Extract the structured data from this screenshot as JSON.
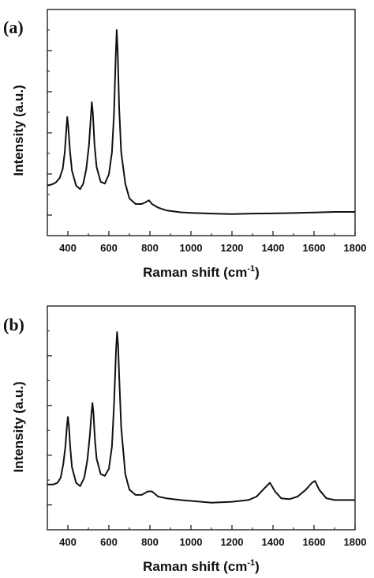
{
  "chart_data": [
    {
      "type": "line",
      "panel_label": "(a)",
      "xlabel": "Raman shift (cm",
      "xlabel_sup": "-1",
      "xlabel_close": ")",
      "ylabel": "Intensity (a.u.)",
      "xlim": [
        300,
        1800
      ],
      "ylim": [
        0,
        100
      ],
      "x_ticks": [
        400,
        600,
        800,
        1000,
        1200,
        1400,
        1600,
        1800
      ],
      "y_ticks_labeled": false,
      "grid": false,
      "series": [
        {
          "x": [
            300,
            320,
            340,
            360,
            375,
            385,
            392,
            397,
            402,
            410,
            420,
            440,
            460,
            475,
            490,
            503,
            512,
            517,
            522,
            530,
            540,
            560,
            580,
            600,
            615,
            625,
            633,
            638,
            643,
            650,
            660,
            680,
            700,
            730,
            760,
            780,
            795,
            810,
            840,
            880,
            950,
            1000,
            1100,
            1200,
            1300,
            1400,
            1500,
            1600,
            1700,
            1800
          ],
          "y": [
            16,
            16.5,
            17.5,
            20,
            25,
            34,
            45,
            53,
            48,
            35,
            24,
            16,
            14,
            17,
            25,
            38,
            53,
            61,
            55,
            38,
            26,
            18,
            17,
            22,
            34,
            55,
            85,
            100,
            88,
            58,
            34,
            17,
            9,
            6,
            6,
            7,
            8,
            6,
            4,
            2.5,
            1.5,
            1.2,
            0.8,
            0.5,
            0.8,
            0.9,
            1.1,
            1.4,
            1.7,
            1.7
          ]
        }
      ]
    },
    {
      "type": "line",
      "panel_label": "(b)",
      "xlabel": "Raman shift (cm",
      "xlabel_sup": "-1",
      "xlabel_close": ")",
      "ylabel": "Intensity (a.u.)",
      "xlim": [
        300,
        1800
      ],
      "ylim": [
        0,
        100
      ],
      "x_ticks": [
        400,
        600,
        800,
        1000,
        1200,
        1400,
        1600,
        1800
      ],
      "y_ticks_labeled": false,
      "grid": false,
      "series": [
        {
          "x": [
            300,
            330,
            350,
            365,
            378,
            388,
            395,
            400,
            405,
            412,
            420,
            440,
            460,
            480,
            495,
            507,
            515,
            520,
            525,
            532,
            540,
            560,
            580,
            600,
            615,
            625,
            635,
            640,
            645,
            650,
            660,
            680,
            700,
            730,
            760,
            790,
            810,
            840,
            880,
            950,
            1000,
            1100,
            1200,
            1280,
            1320,
            1360,
            1385,
            1410,
            1440,
            1480,
            1520,
            1560,
            1590,
            1605,
            1625,
            1660,
            1700,
            1750,
            1800
          ],
          "y": [
            12,
            12,
            13,
            16,
            24,
            34,
            45,
            51,
            46,
            33,
            22,
            13,
            11,
            16,
            26,
            40,
            53,
            59,
            53,
            38,
            27,
            18,
            17,
            21,
            34,
            58,
            90,
            100,
            92,
            75,
            45,
            18,
            9,
            6,
            6,
            8,
            8,
            5,
            4,
            3,
            2.5,
            1.5,
            2,
            3,
            5,
            10,
            13,
            8,
            4,
            3.5,
            5,
            9,
            13,
            14,
            9,
            4,
            3,
            3,
            3
          ]
        }
      ]
    }
  ]
}
